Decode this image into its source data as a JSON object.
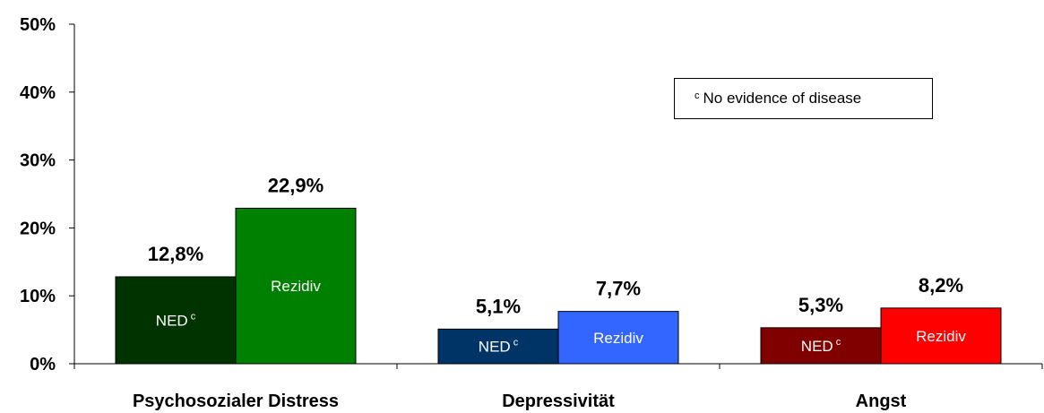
{
  "chart_data": {
    "type": "bar",
    "categories": [
      "Psychosozialer Distress",
      "Depressivität",
      "Angst"
    ],
    "series": [
      {
        "name": "NED",
        "values": [
          12.8,
          5.1,
          5.3
        ]
      },
      {
        "name": "Rezidiv",
        "values": [
          22.9,
          7.7,
          8.2
        ]
      }
    ],
    "value_labels": [
      [
        "12,8%",
        "5,1%",
        "5,3%"
      ],
      [
        "22,9%",
        "7,7%",
        "8,2%"
      ]
    ],
    "in_bar_labels": [
      "NED",
      "Rezidiv"
    ],
    "in_bar_superscripts": [
      "c",
      ""
    ],
    "colors": [
      [
        "#003300",
        "#008000"
      ],
      [
        "#003366",
        "#3366ff"
      ],
      [
        "#800000",
        "#ff0000"
      ]
    ],
    "ylim": [
      0,
      50
    ],
    "yticks": [
      "0%",
      "10%",
      "20%",
      "30%",
      "40%",
      "50%"
    ],
    "grid": false,
    "title": "",
    "xlabel": "",
    "ylabel": ""
  },
  "note": {
    "superscript": "c",
    "text": "No evidence of disease"
  }
}
